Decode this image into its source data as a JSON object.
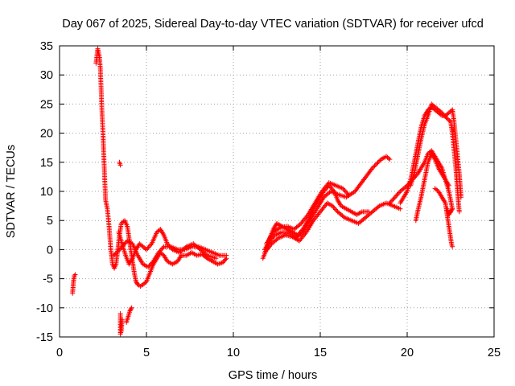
{
  "chart_data": {
    "type": "scatter",
    "title": "Day 067 of 2025, Sidereal Day-to-day VTEC variation (SDTVAR) for receiver ufcd",
    "xlabel": "GPS time / hours",
    "ylabel": "SDTVAR / TECUs",
    "xlim": [
      0,
      25
    ],
    "ylim": [
      -15,
      35
    ],
    "xticks": [
      0,
      5,
      10,
      15,
      20,
      25
    ],
    "yticks": [
      -15,
      -10,
      -5,
      0,
      5,
      10,
      15,
      20,
      25,
      30,
      35
    ],
    "grid": true,
    "legend": "none",
    "marker": "+",
    "series": [
      {
        "name": "SDTVAR",
        "color": "#ff0000",
        "segments": [
          [
            [
              0.75,
              -7.5
            ],
            [
              0.8,
              -5.5
            ],
            [
              0.85,
              -4.5
            ],
            [
              0.9,
              -4.3
            ]
          ],
          [
            [
              2.1,
              32
            ],
            [
              2.2,
              34.5
            ],
            [
              2.3,
              33
            ],
            [
              2.35,
              31
            ],
            [
              2.4,
              27
            ],
            [
              2.45,
              23
            ],
            [
              2.5,
              20
            ],
            [
              2.55,
              16
            ],
            [
              2.6,
              12
            ],
            [
              2.65,
              8.5
            ],
            [
              2.75,
              7
            ],
            [
              2.85,
              4
            ],
            [
              2.95,
              0
            ],
            [
              3.05,
              -2.5
            ],
            [
              3.15,
              -3.2
            ],
            [
              3.25,
              -2.5
            ],
            [
              3.35,
              0
            ],
            [
              3.45,
              2.5
            ],
            [
              3.55,
              4.5
            ],
            [
              3.75,
              5
            ],
            [
              3.9,
              4
            ],
            [
              4.0,
              2
            ],
            [
              4.1,
              0
            ],
            [
              4.2,
              -2
            ],
            [
              4.3,
              -4
            ],
            [
              4.4,
              -5.5
            ],
            [
              4.5,
              -6
            ],
            [
              4.65,
              -6.3
            ],
            [
              4.8,
              -6
            ],
            [
              5.0,
              -5.5
            ],
            [
              5.2,
              -4
            ],
            [
              5.4,
              -2.5
            ],
            [
              5.6,
              -1.5
            ],
            [
              5.8,
              -0.5
            ],
            [
              6.0,
              -1
            ],
            [
              6.2,
              -2
            ],
            [
              6.5,
              -2.5
            ],
            [
              6.8,
              -2
            ],
            [
              7.0,
              -1
            ],
            [
              7.3,
              -1
            ],
            [
              7.6,
              -0.5
            ],
            [
              7.9,
              -1
            ],
            [
              8.2,
              -0.8
            ],
            [
              8.5,
              -1.5
            ],
            [
              8.8,
              -2
            ],
            [
              9.1,
              -2.5
            ],
            [
              9.4,
              -2.2
            ],
            [
              9.6,
              -1.5
            ]
          ],
          [
            [
              3.1,
              -1
            ],
            [
              3.3,
              -0.5
            ],
            [
              3.6,
              0.5
            ],
            [
              3.9,
              1.5
            ],
            [
              4.2,
              1
            ],
            [
              4.5,
              -1
            ],
            [
              4.8,
              -2.5
            ],
            [
              5.1,
              -3
            ],
            [
              5.4,
              -2
            ],
            [
              5.7,
              -0.5
            ],
            [
              6.0,
              0.5
            ],
            [
              6.4,
              0.5
            ],
            [
              6.8,
              0
            ],
            [
              7.2,
              0
            ],
            [
              7.6,
              0.5
            ],
            [
              8.0,
              0.5
            ],
            [
              8.4,
              0
            ],
            [
              8.8,
              -0.5
            ],
            [
              9.2,
              -1
            ],
            [
              9.6,
              -1
            ]
          ],
          [
            [
              3.4,
              3
            ],
            [
              3.6,
              1
            ],
            [
              3.8,
              -1
            ],
            [
              4.0,
              -2.5
            ],
            [
              4.2,
              -1.5
            ],
            [
              4.4,
              0
            ],
            [
              4.6,
              1
            ],
            [
              4.8,
              0.5
            ],
            [
              5.0,
              0
            ],
            [
              5.3,
              1
            ],
            [
              5.6,
              3
            ],
            [
              5.8,
              3.5
            ],
            [
              6.0,
              2.5
            ],
            [
              6.2,
              1
            ],
            [
              6.5,
              0
            ],
            [
              6.9,
              -0.5
            ],
            [
              7.3,
              0.5
            ],
            [
              7.7,
              1
            ],
            [
              8.1,
              0
            ],
            [
              8.5,
              -1
            ],
            [
              9.0,
              -1.5
            ]
          ],
          [
            [
              3.5,
              -11
            ],
            [
              3.5,
              -14.5
            ],
            [
              3.55,
              -14
            ],
            [
              3.6,
              -12
            ]
          ],
          [
            [
              3.85,
              -12.5
            ],
            [
              3.95,
              -11.5
            ],
            [
              4.05,
              -10.5
            ],
            [
              4.15,
              -10
            ]
          ],
          [
            [
              3.45,
              15
            ],
            [
              3.5,
              14.5
            ]
          ],
          [
            [
              11.7,
              -1.5
            ],
            [
              11.9,
              0
            ],
            [
              12.1,
              2
            ],
            [
              12.3,
              3.5
            ],
            [
              12.5,
              4.5
            ],
            [
              12.8,
              4
            ],
            [
              13.1,
              3.5
            ],
            [
              13.4,
              3
            ],
            [
              13.7,
              2.5
            ],
            [
              14.0,
              3.5
            ],
            [
              14.3,
              5
            ],
            [
              14.6,
              7
            ],
            [
              14.9,
              8.5
            ],
            [
              15.2,
              10
            ],
            [
              15.5,
              11
            ],
            [
              15.8,
              10
            ],
            [
              16.0,
              8.5
            ],
            [
              16.2,
              7.5
            ],
            [
              16.5,
              7
            ],
            [
              16.8,
              6.5
            ],
            [
              17.1,
              6
            ],
            [
              17.4,
              6.5
            ],
            [
              17.8,
              6.5
            ]
          ],
          [
            [
              11.8,
              0
            ],
            [
              12.1,
              1.5
            ],
            [
              12.4,
              2.5
            ],
            [
              12.8,
              3
            ],
            [
              13.2,
              3
            ],
            [
              13.6,
              2
            ],
            [
              14.0,
              3
            ],
            [
              14.4,
              5
            ],
            [
              14.8,
              7
            ],
            [
              15.2,
              9
            ],
            [
              15.6,
              10
            ],
            [
              16.0,
              9.5
            ],
            [
              16.5,
              9
            ],
            [
              17.0,
              10
            ],
            [
              17.5,
              12
            ],
            [
              18.0,
              14
            ],
            [
              18.5,
              15.5
            ],
            [
              18.8,
              16
            ],
            [
              19.0,
              15.5
            ]
          ],
          [
            [
              11.9,
              1
            ],
            [
              12.3,
              3
            ],
            [
              12.7,
              3.8
            ],
            [
              13.1,
              4
            ],
            [
              13.5,
              3.5
            ],
            [
              13.9,
              4.5
            ],
            [
              14.3,
              6
            ],
            [
              14.7,
              8
            ],
            [
              15.1,
              10
            ],
            [
              15.5,
              11.5
            ],
            [
              15.9,
              11
            ],
            [
              16.3,
              10.5
            ],
            [
              16.6,
              9.5
            ]
          ],
          [
            [
              11.8,
              -0.5
            ],
            [
              12.2,
              1
            ],
            [
              12.6,
              2
            ],
            [
              13.0,
              2.5
            ],
            [
              13.4,
              2.2
            ],
            [
              13.8,
              1.5
            ],
            [
              14.2,
              3
            ],
            [
              14.6,
              5
            ],
            [
              15.0,
              6.5
            ],
            [
              15.4,
              8
            ],
            [
              15.7,
              7.5
            ],
            [
              16.0,
              6.5
            ],
            [
              16.4,
              5.5
            ],
            [
              16.8,
              5
            ],
            [
              17.2,
              4.5
            ],
            [
              17.6,
              5.5
            ],
            [
              18.0,
              6.5
            ],
            [
              18.4,
              7.5
            ],
            [
              18.8,
              8
            ],
            [
              19.2,
              7.5
            ],
            [
              19.6,
              7
            ]
          ],
          [
            [
              19.0,
              8
            ],
            [
              19.3,
              9
            ],
            [
              19.6,
              10
            ],
            [
              20.0,
              11
            ],
            [
              20.3,
              12
            ],
            [
              20.6,
              13
            ],
            [
              20.8,
              14
            ],
            [
              21.0,
              15
            ],
            [
              21.2,
              16.5
            ],
            [
              21.4,
              17
            ],
            [
              21.6,
              16
            ],
            [
              21.8,
              15
            ],
            [
              22.0,
              14
            ],
            [
              22.2,
              12
            ],
            [
              22.4,
              10
            ],
            [
              22.6,
              7
            ]
          ],
          [
            [
              19.6,
              8
            ],
            [
              20.0,
              10
            ],
            [
              20.2,
              12
            ],
            [
              20.4,
              15
            ],
            [
              20.6,
              18
            ],
            [
              20.8,
              21
            ],
            [
              21.0,
              23
            ],
            [
              21.2,
              24
            ],
            [
              21.4,
              24.5
            ],
            [
              21.6,
              24
            ],
            [
              21.8,
              23.5
            ],
            [
              22.0,
              23
            ],
            [
              22.2,
              23
            ],
            [
              22.4,
              23.5
            ],
            [
              22.6,
              24
            ]
          ],
          [
            [
              20.2,
              11
            ],
            [
              20.4,
              13
            ],
            [
              20.6,
              16
            ],
            [
              20.8,
              19
            ],
            [
              21.0,
              21.5
            ],
            [
              21.2,
              23
            ],
            [
              21.4,
              25
            ],
            [
              21.6,
              24.5
            ],
            [
              21.8,
              24
            ],
            [
              22.0,
              23.5
            ],
            [
              22.3,
              22.5
            ],
            [
              22.5,
              22
            ]
          ],
          [
            [
              20.5,
              5
            ],
            [
              20.6,
              6.5
            ],
            [
              20.8,
              9
            ],
            [
              21.0,
              12
            ],
            [
              21.2,
              15
            ],
            [
              21.4,
              16.5
            ],
            [
              21.6,
              15.5
            ],
            [
              21.8,
              14
            ],
            [
              22.0,
              13
            ],
            [
              22.2,
              12
            ],
            [
              22.4,
              11
            ]
          ],
          [
            [
              21.6,
              10.5
            ],
            [
              21.8,
              10
            ],
            [
              22.0,
              9
            ],
            [
              22.2,
              8
            ],
            [
              22.3,
              6
            ],
            [
              22.4,
              4
            ],
            [
              22.5,
              2
            ],
            [
              22.55,
              1
            ],
            [
              22.6,
              0.5
            ]
          ],
          [
            [
              22.5,
              22
            ],
            [
              22.6,
              20
            ],
            [
              22.7,
              17
            ],
            [
              22.8,
              14
            ],
            [
              22.85,
              12
            ],
            [
              22.9,
              10
            ],
            [
              22.95,
              8
            ],
            [
              23.0,
              6.5
            ]
          ],
          [
            [
              22.6,
              24
            ],
            [
              22.7,
              22
            ],
            [
              22.8,
              19
            ],
            [
              22.9,
              16
            ],
            [
              23.0,
              13
            ],
            [
              23.05,
              11
            ],
            [
              23.1,
              9
            ]
          ],
          [
            [
              22.3,
              7
            ],
            [
              22.4,
              6
            ],
            [
              22.5,
              6.5
            ],
            [
              22.6,
              7
            ]
          ]
        ]
      }
    ]
  }
}
